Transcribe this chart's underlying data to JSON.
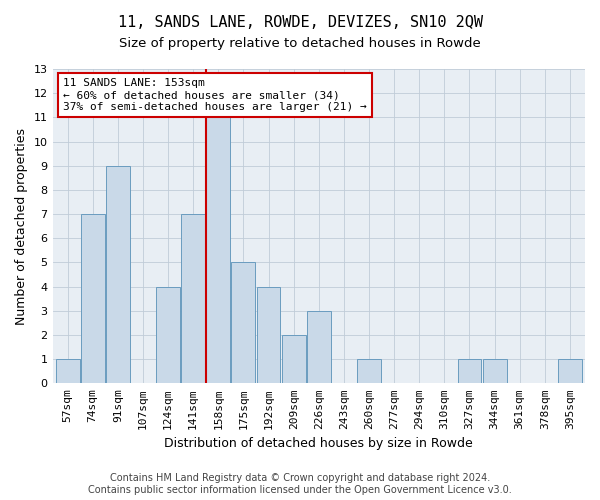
{
  "title": "11, SANDS LANE, ROWDE, DEVIZES, SN10 2QW",
  "subtitle": "Size of property relative to detached houses in Rowde",
  "xlabel": "Distribution of detached houses by size in Rowde",
  "ylabel": "Number of detached properties",
  "categories": [
    "57sqm",
    "74sqm",
    "91sqm",
    "107sqm",
    "124sqm",
    "141sqm",
    "158sqm",
    "175sqm",
    "192sqm",
    "209sqm",
    "226sqm",
    "243sqm",
    "260sqm",
    "277sqm",
    "294sqm",
    "310sqm",
    "327sqm",
    "344sqm",
    "361sqm",
    "378sqm",
    "395sqm"
  ],
  "values": [
    1,
    7,
    9,
    0,
    4,
    7,
    11,
    5,
    4,
    2,
    3,
    0,
    1,
    0,
    0,
    0,
    1,
    1,
    0,
    0,
    1
  ],
  "bar_color": "#c9d9e8",
  "bar_edge_color": "#6a9cbf",
  "vline_x": 6.0,
  "vline_color": "#cc0000",
  "ylim": [
    0,
    13
  ],
  "yticks": [
    0,
    1,
    2,
    3,
    4,
    5,
    6,
    7,
    8,
    9,
    10,
    11,
    12,
    13
  ],
  "annotation_line1": "11 SANDS LANE: 153sqm",
  "annotation_line2": "← 60% of detached houses are smaller (34)",
  "annotation_line3": "37% of semi-detached houses are larger (21) →",
  "annotation_box_color": "#ffffff",
  "annotation_box_edge": "#cc0000",
  "footer1": "Contains HM Land Registry data © Crown copyright and database right 2024.",
  "footer2": "Contains public sector information licensed under the Open Government Licence v3.0.",
  "title_fontsize": 11,
  "subtitle_fontsize": 9.5,
  "axis_label_fontsize": 9,
  "tick_fontsize": 8,
  "annotation_fontsize": 8,
  "footer_fontsize": 7,
  "bg_color": "#e8eef4",
  "grid_color": "#c0ccd8"
}
